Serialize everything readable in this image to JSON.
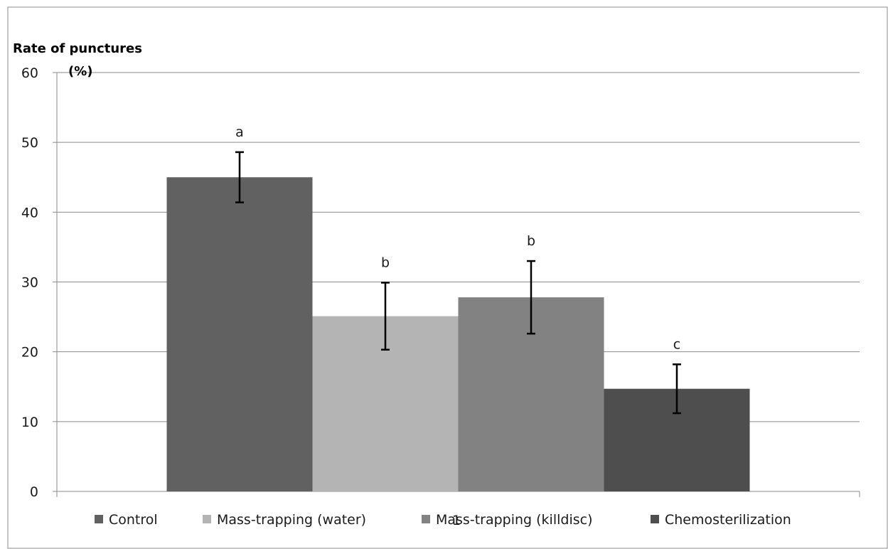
{
  "chart_data": {
    "type": "bar",
    "ylabel": [
      "Rate of punctures",
      "(%)"
    ],
    "xlabel": "1",
    "ylim": [
      0,
      60
    ],
    "yticks": [
      0,
      10,
      20,
      30,
      40,
      50,
      60
    ],
    "grid": true,
    "legend_position": "bottom",
    "categories": [
      "1"
    ],
    "series": [
      {
        "name": "Control",
        "values": [
          45.0
        ],
        "error": [
          3.6
        ],
        "letter": "a",
        "color": "#616161"
      },
      {
        "name": "Mass-trapping (water)",
        "values": [
          25.1
        ],
        "error": [
          4.8
        ],
        "letter": "b",
        "color": "#b4b4b4"
      },
      {
        "name": "Mass-trapping (killdisc)",
        "values": [
          27.8
        ],
        "error": [
          5.2
        ],
        "letter": "b",
        "color": "#828282"
      },
      {
        "name": "Chemosterilization",
        "values": [
          14.7
        ],
        "error": [
          3.5
        ],
        "letter": "c",
        "color": "#4e4e4e"
      }
    ]
  }
}
